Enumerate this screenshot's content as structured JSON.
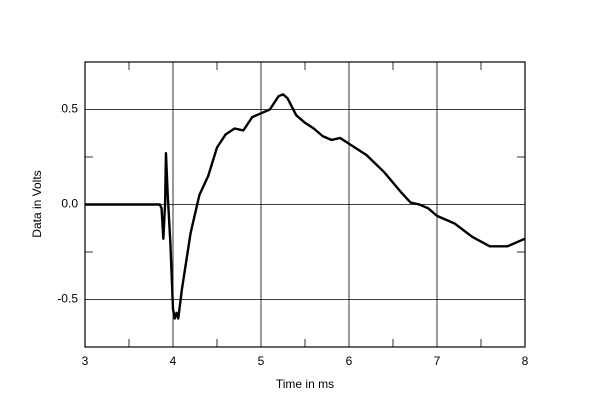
{
  "chart_data": {
    "type": "line",
    "xlabel": "Time in ms",
    "ylabel": "Data in Volts",
    "xlim": [
      3,
      8
    ],
    "ylim": [
      -0.75,
      0.75
    ],
    "xticks": [
      3,
      4,
      5,
      6,
      7,
      8
    ],
    "yticks": [
      -0.5,
      {
        "value": 0,
        "label": "0.0"
      },
      0.5
    ],
    "xminorticks": [
      3.5,
      4.5,
      5.5,
      6.5,
      7.5
    ],
    "yminorticks": [
      -0.25,
      0.25
    ],
    "grid": true,
    "series": [
      {
        "color": "#000000",
        "x": [
          3.0,
          3.85,
          3.87,
          3.89,
          3.91,
          3.92,
          3.94,
          3.97,
          4.0,
          4.02,
          4.04,
          4.06,
          4.1,
          4.2,
          4.3,
          4.4,
          4.5,
          4.6,
          4.7,
          4.8,
          4.9,
          5.0,
          5.1,
          5.2,
          5.25,
          5.3,
          5.4,
          5.5,
          5.6,
          5.7,
          5.8,
          5.9,
          6.0,
          6.2,
          6.4,
          6.6,
          6.7,
          6.8,
          6.9,
          7.0,
          7.2,
          7.4,
          7.6,
          7.8,
          8.0
        ],
        "values": [
          0,
          0,
          -0.02,
          -0.18,
          0.0,
          0.27,
          0.05,
          -0.2,
          -0.55,
          -0.6,
          -0.57,
          -0.6,
          -0.45,
          -0.15,
          0.05,
          0.15,
          0.3,
          0.37,
          0.4,
          0.39,
          0.46,
          0.48,
          0.5,
          0.57,
          0.58,
          0.56,
          0.47,
          0.43,
          0.4,
          0.36,
          0.34,
          0.35,
          0.32,
          0.26,
          0.17,
          0.06,
          0.01,
          0.0,
          -0.02,
          -0.06,
          -0.1,
          -0.17,
          -0.22,
          -0.22,
          -0.18
        ]
      }
    ]
  }
}
